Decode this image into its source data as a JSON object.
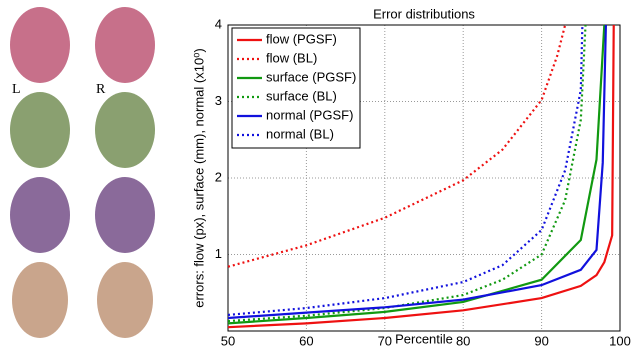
{
  "panel_labels": [
    "L",
    "R"
  ],
  "chart_data": {
    "type": "line",
    "title": "Error distributions",
    "x_label": "Percentile",
    "y_label": "errors: flow (px), surface (mm), normal (x10⁰)",
    "xlim": [
      50,
      100
    ],
    "xticks": [
      50,
      60,
      70,
      80,
      90,
      100
    ],
    "ylim": [
      0,
      4
    ],
    "yticks": [
      1,
      2,
      3,
      4
    ],
    "grid": true,
    "legend": "upper left",
    "series": [
      {
        "name": "flow (PGSF)",
        "color": "#ee1111",
        "dash": false,
        "x": [
          50,
          60,
          70,
          80,
          90,
          95,
          97,
          98,
          99,
          99.2
        ],
        "values": [
          0.05,
          0.1,
          0.17,
          0.27,
          0.43,
          0.59,
          0.73,
          0.9,
          1.25,
          4
        ]
      },
      {
        "name": "flow (BL)",
        "color": "#ee1111",
        "dash": true,
        "x": [
          50,
          60,
          70,
          80,
          85,
          90,
          92,
          93
        ],
        "values": [
          0.84,
          1.12,
          1.48,
          1.97,
          2.37,
          3.02,
          3.6,
          4
        ]
      },
      {
        "name": "surface (PGSF)",
        "color": "#119911",
        "dash": false,
        "x": [
          50,
          60,
          70,
          80,
          90,
          95,
          97,
          98
        ],
        "values": [
          0.1,
          0.17,
          0.25,
          0.38,
          0.67,
          1.19,
          2.24,
          4
        ]
      },
      {
        "name": "surface (BL)",
        "color": "#119911",
        "dash": true,
        "x": [
          50,
          60,
          70,
          80,
          85,
          90,
          93,
          95,
          95.6
        ],
        "values": [
          0.13,
          0.2,
          0.3,
          0.47,
          0.67,
          1.0,
          1.71,
          2.76,
          4
        ]
      },
      {
        "name": "normal (PGSF)",
        "color": "#1111dd",
        "dash": false,
        "x": [
          50,
          60,
          70,
          80,
          90,
          95,
          97,
          97.8,
          98.2
        ],
        "values": [
          0.17,
          0.24,
          0.31,
          0.41,
          0.6,
          0.8,
          1.06,
          2.2,
          4
        ]
      },
      {
        "name": "normal (BL)",
        "color": "#1111dd",
        "dash": true,
        "x": [
          50,
          60,
          70,
          80,
          85,
          90,
          93,
          95,
          95.2
        ],
        "values": [
          0.21,
          0.3,
          0.43,
          0.64,
          0.86,
          1.32,
          2.1,
          3.15,
          4
        ]
      }
    ]
  }
}
